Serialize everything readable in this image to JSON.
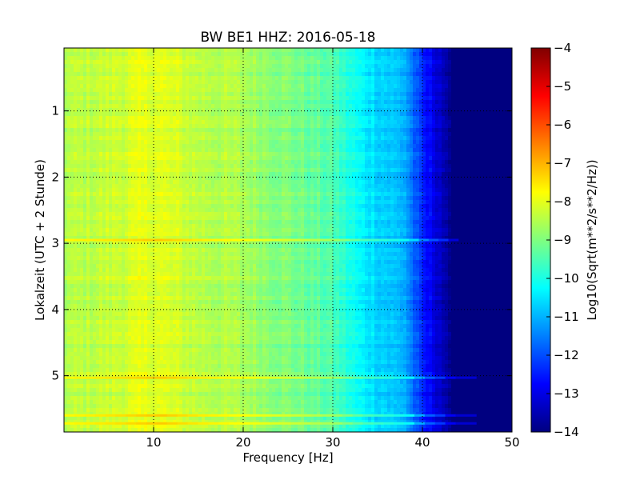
{
  "chart_data": {
    "type": "heatmap",
    "title": "BW BE1 HHZ: 2016-05-18",
    "xlabel": "Frequency [Hz]",
    "ylabel": "Lokalzeit (UTC + 2 Stunde)",
    "xlim": [
      0,
      50
    ],
    "ylim": [
      0.05,
      5.85
    ],
    "y_inverted": true,
    "x_ticks": [
      10,
      20,
      30,
      40,
      50
    ],
    "y_ticks": [
      1,
      2,
      3,
      4,
      5
    ],
    "grid": true,
    "colorbar": {
      "label": "Log10(Sqrt(m**2/s**2/Hz))",
      "range": [
        -14,
        -4
      ],
      "ticks": [
        -4,
        -5,
        -6,
        -7,
        -8,
        -9,
        -10,
        -11,
        -12,
        -13,
        -14
      ],
      "colormap": "jet"
    },
    "spectrum_profile": {
      "frequency_hz": [
        0,
        5,
        10,
        15,
        20,
        25,
        30,
        33,
        35,
        38,
        40,
        42,
        43,
        45,
        50
      ],
      "log10_amplitude": [
        -8.5,
        -8.3,
        -8.0,
        -8.4,
        -8.6,
        -9.0,
        -9.5,
        -10.3,
        -10.6,
        -11.0,
        -12.5,
        -13.2,
        -14.0,
        -14.0,
        -14.0
      ]
    },
    "notable_events": [
      {
        "time": 2.95,
        "max_frequency_hz": 44
      },
      {
        "time": 5.03,
        "max_frequency_hz": 46
      },
      {
        "time": 5.6,
        "max_frequency_hz": 46
      },
      {
        "time": 5.72,
        "max_frequency_hz": 46
      }
    ]
  }
}
